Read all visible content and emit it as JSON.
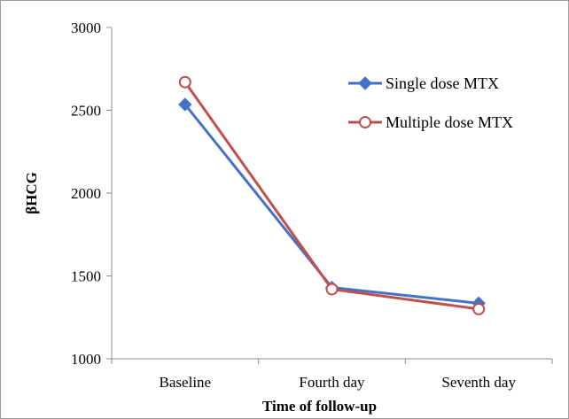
{
  "chart_data": {
    "type": "line",
    "title": "",
    "xlabel": "Time of follow-up",
    "ylabel": "βHCG",
    "categories": [
      "Baseline",
      "Fourth day",
      "Seventh day"
    ],
    "ylim": [
      1000,
      3000
    ],
    "yticks": [
      "1000",
      "1500",
      "2000",
      "2500",
      "3000"
    ],
    "grid": false,
    "legend_position": "top-right",
    "series": [
      {
        "name": "Single dose MTX",
        "values": [
          2535,
          1430,
          1335
        ],
        "color": "#4472c4",
        "marker": "diamond"
      },
      {
        "name": "Multiple dose MTX",
        "values": [
          2670,
          1420,
          1300
        ],
        "color": "#c0504d",
        "marker": "circle-open"
      }
    ]
  }
}
